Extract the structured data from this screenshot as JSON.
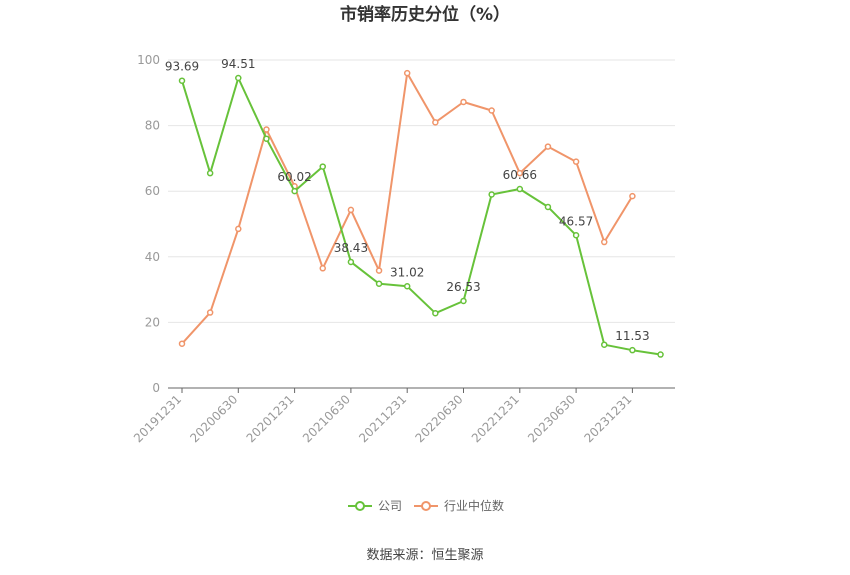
{
  "chart_data": {
    "type": "line",
    "title": "市销率历史分位（%）",
    "xlabel": "",
    "ylabel": "",
    "ylim": [
      0,
      100
    ],
    "yticks": [
      0,
      20,
      40,
      60,
      80,
      100
    ],
    "x": [
      "20191231",
      "20200331",
      "20200630",
      "20200930",
      "20201231",
      "20210331",
      "20210630",
      "20210930",
      "20211231",
      "20220331",
      "20220630",
      "20220930",
      "20221231",
      "20230331",
      "20230630",
      "20230930",
      "20231231",
      "20240331"
    ],
    "x_tick_labels": [
      "20191231",
      "20200630",
      "20201231",
      "20210630",
      "20211231",
      "20220630",
      "20221231",
      "20230630",
      "20231231"
    ],
    "x_tick_indices": [
      0,
      2,
      4,
      6,
      8,
      10,
      12,
      14,
      16
    ],
    "series": [
      {
        "name": "公司",
        "color": "#67c23a",
        "values": [
          93.69,
          65.5,
          94.51,
          76.0,
          60.02,
          67.5,
          38.43,
          31.8,
          31.02,
          22.8,
          26.53,
          59.0,
          60.66,
          55.2,
          46.57,
          13.2,
          11.53,
          10.2
        ],
        "labels": [
          {
            "index": 0,
            "text": "93.69"
          },
          {
            "index": 2,
            "text": "94.51"
          },
          {
            "index": 4,
            "text": "60.02"
          },
          {
            "index": 6,
            "text": "38.43"
          },
          {
            "index": 8,
            "text": "31.02"
          },
          {
            "index": 10,
            "text": "26.53"
          },
          {
            "index": 12,
            "text": "60.66"
          },
          {
            "index": 14,
            "text": "46.57"
          },
          {
            "index": 16,
            "text": "11.53"
          }
        ]
      },
      {
        "name": "行业中位数",
        "color": "#f0956a",
        "values": [
          13.5,
          23.0,
          48.5,
          78.8,
          61.5,
          36.5,
          54.3,
          35.8,
          96.0,
          81.0,
          87.2,
          84.6,
          65.5,
          73.6,
          69.0,
          44.5,
          58.5,
          null
        ]
      }
    ],
    "legend": {
      "position": "bottom",
      "items": [
        "公司",
        "行业中位数"
      ]
    },
    "grid": true,
    "source": "数据来源：恒生聚源"
  }
}
